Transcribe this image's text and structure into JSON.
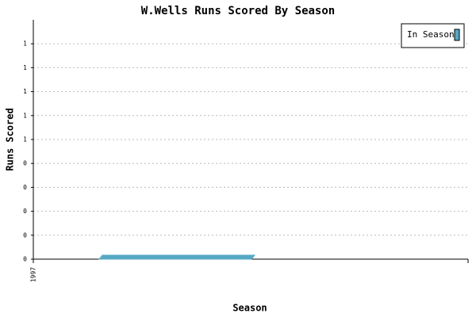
{
  "chart_data": {
    "type": "bar",
    "title": "W.Wells Runs Scored By Season",
    "x_label": "Season",
    "y_label": "Runs Scored",
    "categories": [
      "1997"
    ],
    "series": [
      {
        "name": "In Season",
        "color": "#56a9c4",
        "values": [
          0
        ]
      }
    ],
    "ylim": [
      0,
      1
    ],
    "yticks": [
      0,
      {
        "value": 0.1,
        "label": "0"
      },
      {
        "value": 0.2,
        "label": "0"
      },
      {
        "value": 0.3,
        "label": "0"
      },
      {
        "value": 0.4,
        "label": "0"
      },
      {
        "value": 0.5,
        "label": "1"
      },
      {
        "value": 0.6,
        "label": "1"
      },
      {
        "value": 0.7,
        "label": "1"
      },
      {
        "value": 0.8,
        "label": "1"
      },
      {
        "value": 0.9,
        "label": "1"
      }
    ],
    "grid": true,
    "legend": "top-right"
  }
}
